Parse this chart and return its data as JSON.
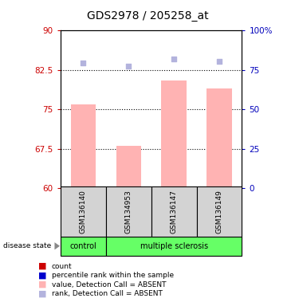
{
  "title": "GDS2978 / 205258_at",
  "samples": [
    "GSM136140",
    "GSM134953",
    "GSM136147",
    "GSM136149"
  ],
  "disease_state": [
    "control",
    "multiple sclerosis",
    "multiple sclerosis",
    "multiple sclerosis"
  ],
  "bar_values": [
    76.0,
    68.0,
    80.5,
    79.0
  ],
  "rank_values": [
    79.5,
    77.5,
    82.0,
    80.5
  ],
  "ylim_left": [
    60,
    90
  ],
  "ylim_right": [
    0,
    100
  ],
  "yticks_left": [
    60,
    67.5,
    75,
    82.5,
    90
  ],
  "ytick_labels_left": [
    "60",
    "67.5",
    "75",
    "82.5",
    "90"
  ],
  "yticks_right": [
    0,
    25,
    50,
    75,
    100
  ],
  "ytick_labels_right": [
    "0",
    "25",
    "50",
    "75",
    "100%"
  ],
  "bar_color": "#ffb3b3",
  "rank_color": "#b3b3dd",
  "bar_bottom": 60,
  "legend_items": [
    {
      "label": "count",
      "color": "#cc0000"
    },
    {
      "label": "percentile rank within the sample",
      "color": "#0000cc"
    },
    {
      "label": "value, Detection Call = ABSENT",
      "color": "#ffb3b3"
    },
    {
      "label": "rank, Detection Call = ABSENT",
      "color": "#b3b3dd"
    }
  ],
  "control_color": "#66ff66",
  "ms_color": "#66ff66",
  "left_axis_color": "#cc0000",
  "right_axis_color": "#0000bb",
  "gridline_vals": [
    67.5,
    75.0,
    82.5
  ],
  "disease_label": "disease state"
}
